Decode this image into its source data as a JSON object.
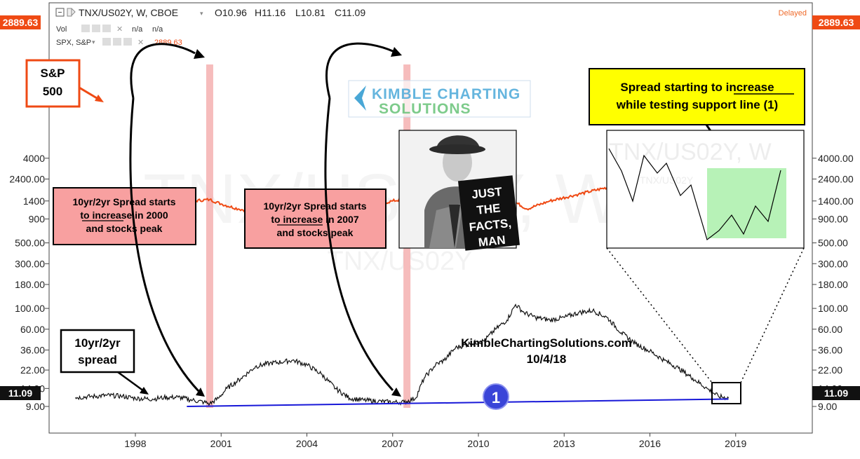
{
  "header": {
    "symbol": "TNX/US02Y, W, CBOE",
    "ohlc": [
      "O10.96",
      "H11.16",
      "L10.81",
      "C11.09"
    ],
    "vol_label": "Vol",
    "vol_values": [
      "n/a",
      "n/a"
    ],
    "spx_label": "SPX, S&P",
    "spx_value": "2889.63",
    "delayed": "Delayed"
  },
  "price_tags": {
    "spx": "2889.63",
    "spread": "11.09"
  },
  "colors": {
    "spx_line": "#ef4a14",
    "spread_line": "#111111",
    "support_line": "#1818d8",
    "highlight": "#f5b0b0",
    "callout_red": "#f8a0a0",
    "callout_yellow": "#ffff00"
  },
  "annotations": {
    "sp500_label": [
      "S&P",
      "500"
    ],
    "spread_label": [
      "10yr/2yr",
      "spread"
    ],
    "callout_2000": [
      "10yr/2yr Spread starts",
      "to increase in 2000",
      "and stocks peak"
    ],
    "callout_2007": [
      "10yr/2yr Spread starts",
      "to increase in 2007",
      "and stocks peak"
    ],
    "callout_current": [
      "Spread starting to increase",
      "while testing support line (1)"
    ],
    "underlined_word": "increase",
    "support_marker": "1",
    "website": "KimbleChartingSolutions.com",
    "date": "10/4/18",
    "logo_line1": "KIMBLE CHARTING",
    "logo_line2": "SOLUTIONS",
    "watermark": "TNX/US02Y, W",
    "watermark_sub": "TNX/US02Y",
    "photo_caption": [
      "JUST",
      "THE",
      "FACTS,",
      "MAN"
    ]
  },
  "chart_data": {
    "type": "line",
    "scale": "log",
    "title": "TNX/US02Y, W, CBOE",
    "x_ticks": [
      "1998",
      "2001",
      "2004",
      "2007",
      "2010",
      "2013",
      "2016",
      "2019"
    ],
    "y_ticks_left": [
      "4000",
      "2400.00",
      "1400",
      "900",
      "500.00",
      "300.00",
      "180.00",
      "100.00",
      "60.00",
      "36.00",
      "22.00",
      "14.00",
      "9.00"
    ],
    "y_ticks_right": [
      "4000.00",
      "2400.00",
      "1400.00",
      "900.00",
      "500.00",
      "300.00",
      "180.00",
      "100.00",
      "60.00",
      "36.00",
      "22.00",
      "14.00",
      "9.00"
    ],
    "series": [
      {
        "name": "SPX, S&P",
        "x": [
          1995.9,
          1996.5,
          1997.0,
          1997.5,
          1998.0,
          1998.6,
          1999.0,
          1999.5,
          2000.0,
          2000.6,
          2001.0,
          2001.6,
          2002.0,
          2002.7,
          2003.2,
          2004.0,
          2004.6,
          2005.5,
          2006.5,
          2007.0,
          2007.5,
          2008.0,
          2008.6,
          2009.0,
          2009.2,
          2009.7,
          2010.3,
          2010.6,
          2011.3,
          2011.7,
          2012.5,
          2013.5,
          2014.5,
          2015.5,
          2016.1,
          2016.6,
          2017.5,
          2018.0,
          2018.2,
          2018.5,
          2018.75
        ],
        "y": [
          500,
          580,
          650,
          770,
          950,
          1000,
          1250,
          1350,
          1400,
          1450,
          1300,
          1150,
          1100,
          850,
          860,
          1120,
          1150,
          1200,
          1290,
          1400,
          1480,
          1350,
          1250,
          800,
          700,
          1050,
          1180,
          1050,
          1350,
          1150,
          1400,
          1650,
          1950,
          2080,
          1900,
          2150,
          2450,
          2800,
          2650,
          2750,
          2890
        ]
      },
      {
        "name": "TNX/US02Y",
        "x": [
          1995.9,
          1996.5,
          1997.0,
          1997.5,
          1998.0,
          1998.6,
          1999.0,
          1999.5,
          2000.0,
          2000.4,
          2000.6,
          2000.9,
          2001.2,
          2001.7,
          2002.2,
          2002.7,
          2003.2,
          2003.5,
          2004.0,
          2004.5,
          2005.0,
          2005.5,
          2006.0,
          2006.5,
          2007.0,
          2007.4,
          2007.8,
          2008.1,
          2008.5,
          2008.8,
          2009.2,
          2009.7,
          2010.2,
          2010.6,
          2011.0,
          2011.3,
          2011.6,
          2012.0,
          2012.5,
          2013.0,
          2013.5,
          2014.0,
          2014.5,
          2015.0,
          2015.5,
          2016.0,
          2016.5,
          2017.0,
          2017.5,
          2018.0,
          2018.4,
          2018.75
        ],
        "y": [
          11.2,
          11.5,
          11.8,
          11.6,
          11.0,
          10.8,
          11.2,
          11.3,
          10.5,
          10.0,
          9.6,
          11.0,
          14.0,
          18.0,
          24.0,
          26.0,
          27.0,
          28.0,
          25.0,
          20.0,
          14.0,
          11.0,
          10.5,
          10.2,
          10.0,
          10.0,
          11.0,
          18.0,
          25.0,
          28.0,
          38.0,
          42.0,
          45.0,
          60.0,
          75.0,
          110.0,
          90.0,
          80.0,
          75.0,
          80.0,
          90.0,
          95.0,
          80.0,
          55.0,
          42.0,
          35.0,
          28.0,
          23.0,
          18.0,
          14.0,
          11.5,
          11.09
        ]
      }
    ],
    "support_line": {
      "x": [
        1999.8,
        2018.75
      ],
      "y": [
        9.0,
        10.8
      ]
    },
    "highlight_x": [
      2000.6,
      2007.5
    ],
    "legend": "top-left"
  }
}
